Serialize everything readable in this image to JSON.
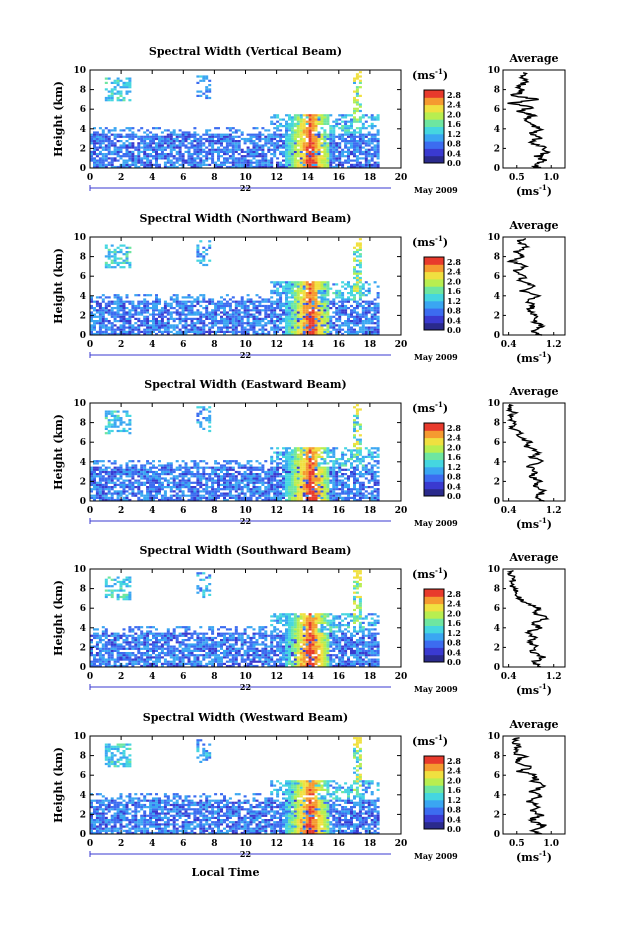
{
  "chart_data": [
    {
      "type": "heatmap",
      "title": "Spectral Width (Vertical Beam)",
      "ylabel": "Height (km)",
      "xlim": [
        0,
        20
      ],
      "ylim": [
        0,
        10
      ],
      "x_ticks": [
        "0",
        "2",
        "4",
        "6",
        "8",
        "10",
        "12",
        "14",
        "16",
        "18",
        "20"
      ],
      "y_ticks": [
        "0",
        "2",
        "4",
        "6",
        "8",
        "10"
      ],
      "date_day": "22",
      "date_month": "May 2009",
      "colorbar": {
        "unit": "(ms",
        "unit_exp": "-1",
        "unit_close": ")",
        "ticks": [
          "0.0",
          "0.4",
          "0.8",
          "1.2",
          "1.6",
          "2.0",
          "2.4",
          "2.8"
        ],
        "range": [
          0,
          3.0
        ]
      },
      "average": {
        "title": "Average",
        "xlabel": "(ms",
        "xlabel_exp": "-1",
        "xlabel_close": ")",
        "x_ticks": [
          "0.5",
          "1.0"
        ],
        "x_tick_values": [
          0.5,
          1.0
        ],
        "xlim": [
          0.3,
          1.2
        ],
        "profile": [
          [
            0.8,
            0
          ],
          [
            0.75,
            0.3
          ],
          [
            0.9,
            0.8
          ],
          [
            0.8,
            1.2
          ],
          [
            0.95,
            1.7
          ],
          [
            0.85,
            2.2
          ],
          [
            0.7,
            2.7
          ],
          [
            0.85,
            3.1
          ],
          [
            0.7,
            3.5
          ],
          [
            0.85,
            4.0
          ],
          [
            0.7,
            4.5
          ],
          [
            0.6,
            5.0
          ],
          [
            0.75,
            5.4
          ],
          [
            0.55,
            5.8
          ],
          [
            0.7,
            6.2
          ],
          [
            0.4,
            6.6
          ],
          [
            0.8,
            7.0
          ],
          [
            0.45,
            7.4
          ],
          [
            0.6,
            7.8
          ],
          [
            0.5,
            8.3
          ],
          [
            0.65,
            8.8
          ],
          [
            0.55,
            9.3
          ],
          [
            0.6,
            9.8
          ]
        ]
      }
    },
    {
      "type": "heatmap",
      "title": "Spectral Width (Northward Beam)",
      "ylabel": "Height (km)",
      "xlim": [
        0,
        20
      ],
      "ylim": [
        0,
        10
      ],
      "x_ticks": [
        "0",
        "2",
        "4",
        "6",
        "8",
        "10",
        "12",
        "14",
        "16",
        "18",
        "20"
      ],
      "y_ticks": [
        "0",
        "2",
        "4",
        "6",
        "8",
        "10"
      ],
      "date_day": "22",
      "date_month": "May 2009",
      "colorbar": {
        "unit": "(ms",
        "unit_exp": "-1",
        "unit_close": ")",
        "ticks": [
          "0.0",
          "0.4",
          "0.8",
          "1.2",
          "1.6",
          "2.0",
          "2.4",
          "2.8"
        ],
        "range": [
          0,
          3.0
        ]
      },
      "average": {
        "title": "Average",
        "xlabel": "(ms",
        "xlabel_exp": "-1",
        "xlabel_close": ")",
        "x_ticks": [
          "0.4",
          "1.2"
        ],
        "x_tick_values": [
          0.4,
          1.2
        ],
        "xlim": [
          0.3,
          1.4
        ],
        "profile": [
          [
            0.95,
            0
          ],
          [
            0.8,
            0.4
          ],
          [
            1.0,
            0.9
          ],
          [
            0.85,
            1.4
          ],
          [
            0.9,
            2.0
          ],
          [
            0.75,
            2.5
          ],
          [
            0.85,
            3.0
          ],
          [
            0.7,
            3.5
          ],
          [
            0.9,
            4.0
          ],
          [
            0.65,
            4.5
          ],
          [
            0.85,
            5.0
          ],
          [
            0.6,
            5.5
          ],
          [
            0.7,
            6.0
          ],
          [
            0.5,
            6.5
          ],
          [
            0.7,
            7.0
          ],
          [
            0.45,
            7.5
          ],
          [
            0.65,
            8.0
          ],
          [
            0.5,
            8.5
          ],
          [
            0.75,
            9.0
          ],
          [
            0.55,
            9.5
          ],
          [
            0.7,
            9.9
          ]
        ]
      }
    },
    {
      "type": "heatmap",
      "title": "Spectral Width (Eastward Beam)",
      "ylabel": "Height (km)",
      "xlim": [
        0,
        20
      ],
      "ylim": [
        0,
        10
      ],
      "x_ticks": [
        "0",
        "2",
        "4",
        "6",
        "8",
        "10",
        "12",
        "14",
        "16",
        "18",
        "20"
      ],
      "y_ticks": [
        "0",
        "2",
        "4",
        "6",
        "8",
        "10"
      ],
      "date_day": "22",
      "date_month": "May 2009",
      "colorbar": {
        "unit": "(ms",
        "unit_exp": "-1",
        "unit_close": ")",
        "ticks": [
          "0.0",
          "0.4",
          "0.8",
          "1.2",
          "1.6",
          "2.0",
          "2.4",
          "2.8"
        ],
        "range": [
          0,
          3.0
        ]
      },
      "average": {
        "title": "Average",
        "xlabel": "(ms",
        "xlabel_exp": "-1",
        "xlabel_close": ")",
        "x_ticks": [
          "0.4",
          "1.2"
        ],
        "x_tick_values": [
          0.4,
          1.2
        ],
        "xlim": [
          0.3,
          1.4
        ],
        "profile": [
          [
            1.0,
            0
          ],
          [
            0.9,
            0.5
          ],
          [
            1.05,
            1.0
          ],
          [
            0.85,
            1.5
          ],
          [
            0.95,
            2.0
          ],
          [
            0.8,
            2.5
          ],
          [
            0.9,
            3.0
          ],
          [
            0.75,
            3.5
          ],
          [
            1.0,
            4.0
          ],
          [
            0.8,
            4.5
          ],
          [
            0.95,
            5.0
          ],
          [
            0.7,
            5.5
          ],
          [
            0.8,
            6.0
          ],
          [
            0.55,
            6.5
          ],
          [
            0.6,
            7.0
          ],
          [
            0.45,
            7.5
          ],
          [
            0.5,
            8.0
          ],
          [
            0.4,
            8.5
          ],
          [
            0.5,
            9.0
          ],
          [
            0.4,
            9.5
          ],
          [
            0.45,
            9.9
          ]
        ]
      }
    },
    {
      "type": "heatmap",
      "title": "Spectral Width (Southward Beam)",
      "ylabel": "Height (km)",
      "xlim": [
        0,
        20
      ],
      "ylim": [
        0,
        10
      ],
      "x_ticks": [
        "0",
        "2",
        "4",
        "6",
        "8",
        "10",
        "12",
        "14",
        "16",
        "18",
        "20"
      ],
      "y_ticks": [
        "0",
        "2",
        "4",
        "6",
        "8",
        "10"
      ],
      "date_day": "22",
      "date_month": "May 2009",
      "colorbar": {
        "unit": "(ms",
        "unit_exp": "-1",
        "unit_close": ")",
        "ticks": [
          "0.0",
          "0.4",
          "0.8",
          "1.2",
          "1.6",
          "2.0",
          "2.4",
          "2.8"
        ],
        "range": [
          0,
          3.0
        ]
      },
      "average": {
        "title": "Average",
        "xlabel": "(ms",
        "xlabel_exp": "-1",
        "xlabel_close": ")",
        "x_ticks": [
          "0.4",
          "1.2"
        ],
        "x_tick_values": [
          0.4,
          1.2
        ],
        "xlim": [
          0.3,
          1.4
        ],
        "profile": [
          [
            0.95,
            0
          ],
          [
            0.85,
            0.5
          ],
          [
            1.0,
            1.0
          ],
          [
            0.8,
            1.5
          ],
          [
            0.9,
            2.0
          ],
          [
            0.75,
            2.5
          ],
          [
            0.85,
            3.0
          ],
          [
            0.7,
            3.5
          ],
          [
            0.95,
            4.0
          ],
          [
            0.8,
            4.5
          ],
          [
            1.1,
            5.0
          ],
          [
            0.85,
            5.5
          ],
          [
            0.95,
            6.0
          ],
          [
            0.7,
            6.5
          ],
          [
            0.6,
            7.0
          ],
          [
            0.55,
            7.5
          ],
          [
            0.5,
            8.0
          ],
          [
            0.45,
            8.5
          ],
          [
            0.5,
            9.0
          ],
          [
            0.4,
            9.5
          ],
          [
            0.45,
            9.9
          ]
        ]
      }
    },
    {
      "type": "heatmap",
      "title": "Spectral Width (Westward Beam)",
      "ylabel": "Height (km)",
      "xlabel": "Local Time",
      "xlim": [
        0,
        20
      ],
      "ylim": [
        0,
        10
      ],
      "x_ticks": [
        "0",
        "2",
        "4",
        "6",
        "8",
        "10",
        "12",
        "14",
        "16",
        "18",
        "20"
      ],
      "y_ticks": [
        "0",
        "2",
        "4",
        "6",
        "8",
        "10"
      ],
      "date_day": "22",
      "date_month": "May 2009",
      "colorbar": {
        "unit": "(ms",
        "unit_exp": "-1",
        "unit_close": ")",
        "ticks": [
          "0.0",
          "0.4",
          "0.8",
          "1.2",
          "1.6",
          "2.0",
          "2.4",
          "2.8"
        ],
        "range": [
          0,
          3.0
        ]
      },
      "average": {
        "title": "Average",
        "xlabel": "(ms",
        "xlabel_exp": "-1",
        "xlabel_close": ")",
        "x_ticks": [
          "0.5",
          "1.0"
        ],
        "x_tick_values": [
          0.5,
          1.0
        ],
        "xlim": [
          0.3,
          1.2
        ],
        "profile": [
          [
            0.85,
            0
          ],
          [
            0.75,
            0.4
          ],
          [
            0.9,
            0.9
          ],
          [
            0.7,
            1.4
          ],
          [
            0.85,
            1.9
          ],
          [
            0.7,
            2.4
          ],
          [
            0.8,
            2.9
          ],
          [
            0.65,
            3.4
          ],
          [
            0.85,
            3.9
          ],
          [
            0.7,
            4.4
          ],
          [
            0.95,
            4.9
          ],
          [
            0.75,
            5.4
          ],
          [
            0.8,
            5.9
          ],
          [
            0.55,
            6.4
          ],
          [
            0.7,
            6.9
          ],
          [
            0.5,
            7.4
          ],
          [
            0.6,
            7.9
          ],
          [
            0.45,
            8.4
          ],
          [
            0.55,
            8.9
          ],
          [
            0.45,
            9.4
          ],
          [
            0.55,
            9.9
          ]
        ]
      }
    }
  ],
  "colors": {
    "colormap": [
      "#2a2a8c",
      "#3a3ad0",
      "#3c6cf0",
      "#3aa6f2",
      "#45d6e0",
      "#6ee6a0",
      "#b8ee50",
      "#f0e040",
      "#f59a30",
      "#e83a2c"
    ]
  }
}
